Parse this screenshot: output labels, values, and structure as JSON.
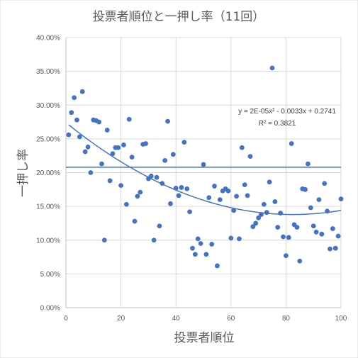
{
  "chart_data": {
    "type": "scatter",
    "title": "投票者順位と一押し率（11回）",
    "xlabel": "投票者順位",
    "ylabel": "一押し率",
    "xlim": [
      0,
      100
    ],
    "ylim": [
      0,
      0.4
    ],
    "x_ticks": [
      "0",
      "20",
      "40",
      "60",
      "80",
      "100"
    ],
    "y_ticks": [
      "0.00%",
      "5.00%",
      "10.00%",
      "15.00%",
      "20.00%",
      "25.00%",
      "30.00%",
      "35.00%",
      "40.00%"
    ],
    "grid": true,
    "point_color": "#4472C4",
    "line_color": "#4472C4",
    "trendline": {
      "type": "polynomial",
      "equation": "y = 2E-05x² - 0.0033x + 0.2741",
      "r_squared": "R² = 0.3821",
      "coefficients": [
        2e-05,
        -0.0033,
        0.2741
      ]
    },
    "reference_line": {
      "y": 0.208
    },
    "points": [
      [
        1,
        0.256
      ],
      [
        2,
        0.289
      ],
      [
        3,
        0.311
      ],
      [
        4,
        0.278
      ],
      [
        5,
        0.253
      ],
      [
        6,
        0.32
      ],
      [
        7,
        0.231
      ],
      [
        8,
        0.238
      ],
      [
        9,
        0.2
      ],
      [
        10,
        0.278
      ],
      [
        11,
        0.277
      ],
      [
        12,
        0.275
      ],
      [
        13,
        0.213
      ],
      [
        14,
        0.1
      ],
      [
        15,
        0.263
      ],
      [
        16,
        0.188
      ],
      [
        17,
        0.228
      ],
      [
        18,
        0.237
      ],
      [
        19,
        0.237
      ],
      [
        20,
        0.181
      ],
      [
        21,
        0.241
      ],
      [
        22,
        0.153
      ],
      [
        23,
        0.279
      ],
      [
        24,
        0.223
      ],
      [
        25,
        0.128
      ],
      [
        26,
        0.165
      ],
      [
        27,
        0.171
      ],
      [
        28,
        0.242
      ],
      [
        29,
        0.243
      ],
      [
        30,
        0.191
      ],
      [
        31,
        0.195
      ],
      [
        32,
        0.1
      ],
      [
        33,
        0.193
      ],
      [
        34,
        0.121
      ],
      [
        35,
        0.184
      ],
      [
        36,
        0.218
      ],
      [
        37,
        0.276
      ],
      [
        38,
        0.154
      ],
      [
        39,
        0.227
      ],
      [
        40,
        0.177
      ],
      [
        41,
        0.166
      ],
      [
        42,
        0.178
      ],
      [
        43,
        0.245
      ],
      [
        44,
        0.176
      ],
      [
        45,
        0.142
      ],
      [
        46,
        0.088
      ],
      [
        47,
        0.079
      ],
      [
        48,
        0.102
      ],
      [
        49,
        0.095
      ],
      [
        50,
        0.212
      ],
      [
        51,
        0.079
      ],
      [
        52,
        0.163
      ],
      [
        53,
        0.094
      ],
      [
        54,
        0.18
      ],
      [
        55,
        0.062
      ],
      [
        56,
        0.16
      ],
      [
        57,
        0.173
      ],
      [
        58,
        0.176
      ],
      [
        59,
        0.173
      ],
      [
        60,
        0.103
      ],
      [
        61,
        0.144
      ],
      [
        62,
        0.165
      ],
      [
        63,
        0.102
      ],
      [
        64,
        0.237
      ],
      [
        65,
        0.182
      ],
      [
        66,
        0.166
      ],
      [
        67,
        0.224
      ],
      [
        68,
        0.12
      ],
      [
        69,
        0.125
      ],
      [
        70,
        0.133
      ],
      [
        71,
        0.138
      ],
      [
        72,
        0.153
      ],
      [
        73,
        0.141
      ],
      [
        74,
        0.186
      ],
      [
        75,
        0.355
      ],
      [
        76,
        0.157
      ],
      [
        77,
        0.119
      ],
      [
        78,
        0.14
      ],
      [
        79,
        0.105
      ],
      [
        80,
        0.077
      ],
      [
        81,
        0.104
      ],
      [
        82,
        0.243
      ],
      [
        83,
        0.123
      ],
      [
        84,
        0.119
      ],
      [
        85,
        0.069
      ],
      [
        86,
        0.176
      ],
      [
        87,
        0.175
      ],
      [
        88,
        0.213
      ],
      [
        89,
        0.148
      ],
      [
        90,
        0.121
      ],
      [
        91,
        0.112
      ],
      [
        92,
        0.16
      ],
      [
        93,
        0.109
      ],
      [
        94,
        0.184
      ],
      [
        95,
        0.143
      ],
      [
        96,
        0.087
      ],
      [
        97,
        0.117
      ],
      [
        98,
        0.088
      ],
      [
        99,
        0.106
      ],
      [
        100,
        0.161
      ]
    ]
  }
}
